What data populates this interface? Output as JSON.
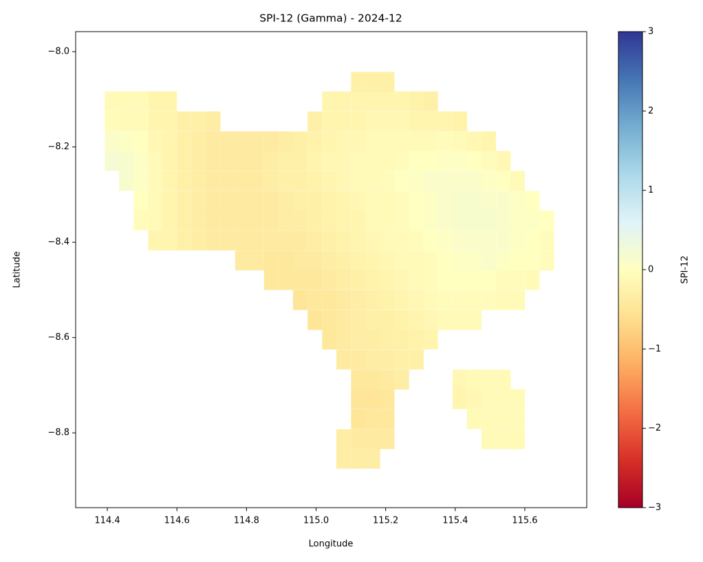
{
  "chart_data": {
    "type": "heatmap",
    "title": "SPI-12 (Gamma) - 2024-12",
    "xlabel": "Longitude",
    "ylabel": "Latitude",
    "colorbar_label": "SPI-12",
    "colormap": "RdYlBu",
    "x": [
      114.413,
      114.454,
      114.496,
      114.538,
      114.579,
      114.621,
      114.663,
      114.704,
      114.746,
      114.788,
      114.829,
      114.871,
      114.913,
      114.954,
      114.996,
      115.038,
      115.079,
      115.121,
      115.163,
      115.204,
      115.246,
      115.288,
      115.329,
      115.371,
      115.413,
      115.454,
      115.496,
      115.538,
      115.579,
      115.621,
      115.663
    ],
    "y": [
      -8.063,
      -8.104,
      -8.146,
      -8.188,
      -8.229,
      -8.271,
      -8.313,
      -8.354,
      -8.396,
      -8.438,
      -8.479,
      -8.521,
      -8.563,
      -8.604,
      -8.646,
      -8.688,
      -8.729,
      -8.771,
      -8.813,
      -8.854
    ],
    "z": [
      [
        null,
        null,
        null,
        null,
        null,
        null,
        null,
        null,
        null,
        null,
        null,
        null,
        null,
        null,
        null,
        null,
        null,
        -0.3,
        -0.3,
        -0.3,
        null,
        null,
        null,
        null,
        null,
        null,
        null,
        null,
        null,
        null,
        null
      ],
      [
        -0.1,
        -0.1,
        -0.1,
        -0.2,
        -0.2,
        null,
        null,
        null,
        null,
        null,
        null,
        null,
        null,
        null,
        null,
        -0.2,
        -0.2,
        -0.2,
        -0.2,
        -0.2,
        -0.2,
        -0.25,
        -0.3,
        null,
        null,
        null,
        null,
        null,
        null,
        null,
        null
      ],
      [
        -0.05,
        -0.1,
        -0.1,
        -0.2,
        -0.2,
        -0.3,
        -0.3,
        -0.35,
        null,
        null,
        null,
        null,
        null,
        null,
        -0.3,
        -0.2,
        -0.2,
        -0.2,
        -0.15,
        -0.15,
        -0.15,
        -0.2,
        -0.2,
        -0.2,
        -0.25,
        null,
        null,
        null,
        null,
        null,
        null
      ],
      [
        0.1,
        0.05,
        0.0,
        -0.15,
        -0.2,
        -0.3,
        -0.35,
        -0.4,
        -0.4,
        -0.4,
        -0.4,
        -0.4,
        -0.35,
        -0.3,
        -0.25,
        -0.2,
        -0.15,
        -0.15,
        -0.1,
        -0.1,
        -0.1,
        -0.1,
        -0.1,
        -0.05,
        -0.1,
        -0.15,
        -0.2,
        null,
        null,
        null,
        null
      ],
      [
        0.2,
        0.15,
        0.05,
        -0.1,
        -0.2,
        -0.3,
        -0.35,
        -0.4,
        -0.4,
        -0.4,
        -0.4,
        -0.35,
        -0.3,
        -0.3,
        -0.2,
        -0.15,
        -0.15,
        -0.1,
        -0.1,
        -0.1,
        -0.05,
        0.0,
        0.0,
        0.05,
        0.05,
        0.0,
        -0.05,
        -0.15,
        null,
        null,
        null
      ],
      [
        null,
        0.15,
        0.05,
        -0.1,
        -0.2,
        -0.3,
        -0.35,
        -0.4,
        -0.4,
        -0.4,
        -0.4,
        -0.35,
        -0.3,
        -0.3,
        -0.25,
        -0.2,
        -0.15,
        -0.1,
        -0.1,
        -0.05,
        0.0,
        0.05,
        0.1,
        0.1,
        0.1,
        0.1,
        0.05,
        0.0,
        -0.1,
        null,
        null
      ],
      [
        null,
        null,
        0.0,
        -0.1,
        -0.2,
        -0.3,
        -0.35,
        -0.4,
        -0.4,
        -0.4,
        -0.4,
        -0.4,
        -0.35,
        -0.3,
        -0.3,
        -0.25,
        -0.2,
        -0.15,
        -0.1,
        -0.1,
        -0.05,
        0.0,
        0.05,
        0.1,
        0.15,
        0.15,
        0.1,
        0.1,
        0.05,
        0.0,
        null
      ],
      [
        null,
        null,
        -0.05,
        -0.1,
        -0.2,
        -0.3,
        -0.35,
        -0.4,
        -0.4,
        -0.4,
        -0.4,
        -0.4,
        -0.35,
        -0.35,
        -0.3,
        -0.25,
        -0.2,
        -0.2,
        -0.1,
        -0.1,
        -0.05,
        0.0,
        0.05,
        0.1,
        0.15,
        0.15,
        0.15,
        0.1,
        0.05,
        0.05,
        0.0
      ],
      [
        null,
        null,
        null,
        -0.2,
        -0.2,
        -0.3,
        -0.35,
        -0.4,
        -0.4,
        -0.4,
        -0.4,
        -0.4,
        -0.4,
        -0.4,
        -0.35,
        -0.3,
        -0.25,
        -0.2,
        -0.15,
        -0.1,
        -0.1,
        -0.05,
        0.0,
        0.05,
        0.1,
        0.1,
        0.1,
        0.1,
        0.05,
        0.0,
        -0.05
      ],
      [
        null,
        null,
        null,
        null,
        null,
        null,
        null,
        null,
        null,
        -0.4,
        -0.4,
        -0.45,
        -0.45,
        -0.4,
        -0.4,
        -0.35,
        -0.3,
        -0.25,
        -0.2,
        -0.15,
        -0.1,
        -0.1,
        -0.05,
        0.0,
        0.05,
        0.05,
        0.1,
        0.05,
        0.0,
        0.0,
        -0.05
      ],
      [
        null,
        null,
        null,
        null,
        null,
        null,
        null,
        null,
        null,
        null,
        null,
        -0.45,
        -0.45,
        -0.45,
        -0.45,
        -0.4,
        -0.35,
        -0.3,
        -0.25,
        -0.2,
        -0.15,
        -0.1,
        -0.05,
        0.0,
        0.0,
        0.0,
        0.0,
        -0.05,
        -0.05,
        -0.1,
        null
      ],
      [
        null,
        null,
        null,
        null,
        null,
        null,
        null,
        null,
        null,
        null,
        null,
        null,
        null,
        -0.5,
        -0.45,
        -0.45,
        -0.4,
        -0.35,
        -0.3,
        -0.25,
        -0.2,
        -0.15,
        -0.1,
        -0.05,
        -0.05,
        -0.05,
        -0.05,
        -0.1,
        -0.1,
        null,
        null
      ],
      [
        null,
        null,
        null,
        null,
        null,
        null,
        null,
        null,
        null,
        null,
        null,
        null,
        null,
        null,
        -0.5,
        -0.45,
        -0.4,
        -0.35,
        -0.3,
        -0.3,
        -0.25,
        -0.2,
        -0.15,
        -0.1,
        -0.1,
        -0.1,
        null,
        null,
        null,
        null,
        null
      ],
      [
        null,
        null,
        null,
        null,
        null,
        null,
        null,
        null,
        null,
        null,
        null,
        null,
        null,
        null,
        null,
        -0.45,
        -0.4,
        -0.35,
        -0.35,
        -0.3,
        -0.3,
        -0.25,
        -0.2,
        null,
        null,
        null,
        null,
        null,
        null,
        null,
        null
      ],
      [
        null,
        null,
        null,
        null,
        null,
        null,
        null,
        null,
        null,
        null,
        null,
        null,
        null,
        null,
        null,
        null,
        -0.4,
        -0.4,
        -0.35,
        -0.35,
        -0.3,
        -0.3,
        null,
        null,
        null,
        null,
        null,
        null,
        null,
        null,
        null
      ],
      [
        null,
        null,
        null,
        null,
        null,
        null,
        null,
        null,
        null,
        null,
        null,
        null,
        null,
        null,
        null,
        null,
        null,
        -0.45,
        -0.45,
        -0.4,
        -0.35,
        null,
        null,
        null,
        -0.15,
        -0.1,
        -0.1,
        -0.1,
        null,
        null,
        null
      ],
      [
        null,
        null,
        null,
        null,
        null,
        null,
        null,
        null,
        null,
        null,
        null,
        null,
        null,
        null,
        null,
        null,
        null,
        -0.5,
        -0.5,
        -0.45,
        null,
        null,
        null,
        null,
        -0.2,
        -0.15,
        -0.1,
        -0.1,
        -0.1,
        null,
        null
      ],
      [
        null,
        null,
        null,
        null,
        null,
        null,
        null,
        null,
        null,
        null,
        null,
        null,
        null,
        null,
        null,
        null,
        null,
        -0.5,
        -0.45,
        -0.45,
        null,
        null,
        null,
        null,
        null,
        -0.1,
        -0.1,
        -0.1,
        -0.1,
        null,
        null
      ],
      [
        null,
        null,
        null,
        null,
        null,
        null,
        null,
        null,
        null,
        null,
        null,
        null,
        null,
        null,
        null,
        null,
        -0.35,
        -0.4,
        -0.4,
        -0.4,
        null,
        null,
        null,
        null,
        null,
        null,
        -0.1,
        -0.1,
        -0.1,
        null,
        null
      ],
      [
        null,
        null,
        null,
        null,
        null,
        null,
        null,
        null,
        null,
        null,
        null,
        null,
        null,
        null,
        null,
        null,
        -0.35,
        -0.35,
        -0.35,
        null,
        null,
        null,
        null,
        null,
        null,
        null,
        null,
        null,
        null,
        null,
        null
      ]
    ],
    "xlim": [
      114.309,
      115.778
    ],
    "ylim": [
      -8.957,
      -7.958
    ],
    "xticks": [
      114.4,
      114.6,
      114.8,
      {
        "value": 115.0,
        "label": "115.0"
      },
      115.2,
      115.4,
      115.6
    ],
    "yticks": [
      {
        "value": -8.0,
        "label": "−8.0"
      },
      {
        "value": -8.2,
        "label": "−8.2"
      },
      {
        "value": -8.4,
        "label": "−8.4"
      },
      {
        "value": -8.6,
        "label": "−8.6"
      },
      {
        "value": -8.8,
        "label": "−8.8"
      }
    ],
    "zlim": [
      -3,
      3
    ],
    "zticks": [
      {
        "value": -3,
        "label": "−3"
      },
      {
        "value": -2,
        "label": "−2"
      },
      {
        "value": -1,
        "label": "−1"
      },
      0,
      1,
      2,
      3
    ]
  }
}
